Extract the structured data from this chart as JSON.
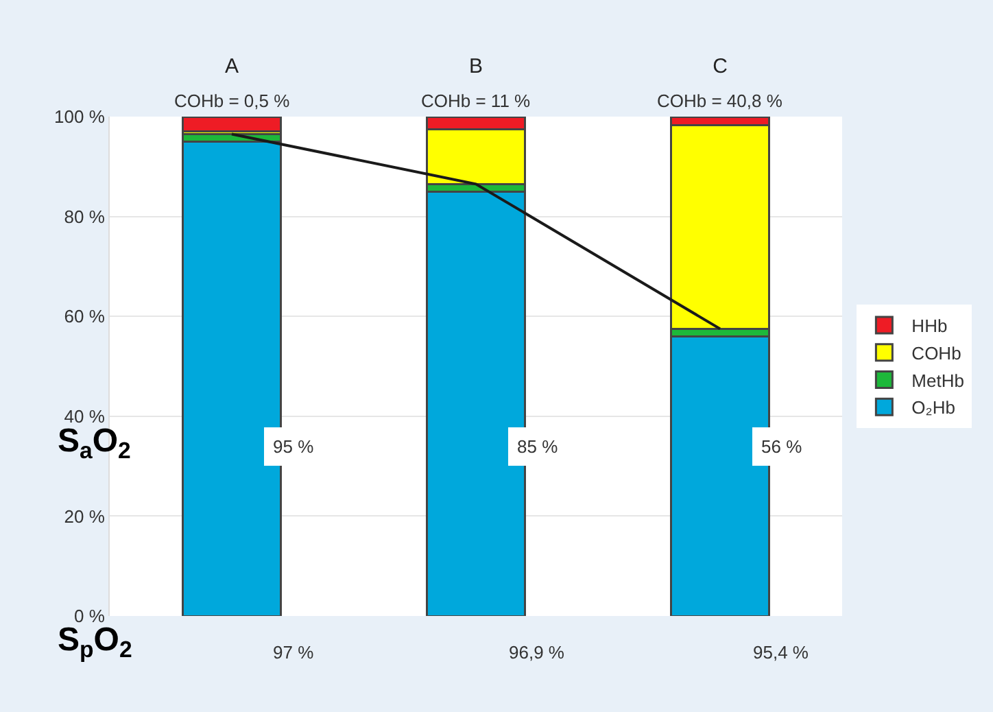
{
  "chart_data": {
    "type": "bar",
    "stacked": true,
    "categories": [
      "A",
      "B",
      "C"
    ],
    "series": [
      {
        "name": "O₂Hb",
        "color": "#00a8dc",
        "values": [
          95,
          85,
          56
        ],
        "value_labels": [
          "95 %",
          "85 %",
          "56 %"
        ]
      },
      {
        "name": "MetHb",
        "color": "#1db83a",
        "values": [
          1.5,
          1.5,
          1.5
        ]
      },
      {
        "name": "COHb",
        "color": "#ffff00",
        "values": [
          0.5,
          11,
          40.8
        ]
      },
      {
        "name": "HHb",
        "color": "#ee1c25",
        "values": [
          3,
          2.5,
          1.7
        ]
      },
      {
        "type": "line",
        "color": "#1a1a1a",
        "values": [
          96.5,
          86.5,
          57.5
        ]
      }
    ],
    "ylim": [
      0,
      100
    ],
    "yticks": [
      {
        "value": 0,
        "label": "0 %"
      },
      {
        "value": 20,
        "label": "20 %"
      },
      {
        "value": 40,
        "label": "40 %"
      },
      {
        "value": 60,
        "label": "60 %"
      },
      {
        "value": 80,
        "label": "80 %"
      },
      {
        "value": 100,
        "label": "100 %"
      }
    ],
    "grid": "y",
    "legend": "right",
    "annotations": [
      {
        "text": "COHb = 0,5 %",
        "x": "A",
        "y": 100
      },
      {
        "text": "COHb = 11 %",
        "x": "B",
        "y": 100
      },
      {
        "text": "COHb = 40,8 %",
        "x": "C",
        "y": 100
      },
      "S$_{a}$O$_{2}$",
      "S$_{p}$O$_{2}$",
      "97 %",
      "96,9 %",
      "95,4 %"
    ]
  }
}
